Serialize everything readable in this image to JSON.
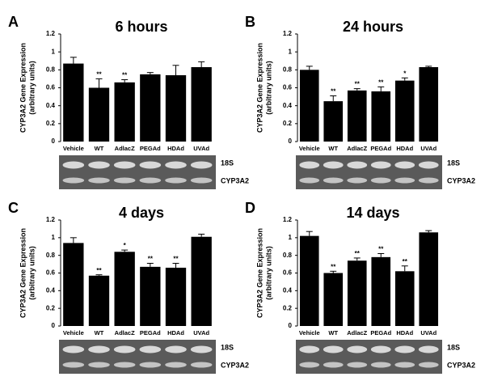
{
  "chart_data": [
    {
      "type": "bar",
      "panel": "A",
      "title": "6 hours",
      "ylabel": [
        "CYP3A2 Gene Expression",
        "(arbitrary units)"
      ],
      "categories": [
        "Vehicle",
        "WT",
        "AdlacZ",
        "PEGAd",
        "HDAd",
        "UVAd"
      ],
      "values": [
        0.87,
        0.6,
        0.66,
        0.75,
        0.74,
        0.83
      ],
      "errors": [
        0.07,
        0.1,
        0.03,
        0.02,
        0.11,
        0.06
      ],
      "significance": [
        null,
        "**",
        "**",
        null,
        null,
        null
      ],
      "color": "#000000",
      "ylim": [
        0,
        1.2
      ],
      "yticks": [
        0,
        0.2,
        0.4,
        0.6,
        0.8,
        1,
        1.2
      ],
      "gel_labels": [
        "18S",
        "CYP3A2"
      ]
    },
    {
      "type": "bar",
      "panel": "B",
      "title": "24 hours",
      "ylabel": [
        "CYP3A2 Gene Expression",
        "(arbitrary units)"
      ],
      "categories": [
        "Vehicle",
        "WT",
        "AdlacZ",
        "PEGAd",
        "HDAd",
        "UVAd"
      ],
      "values": [
        0.8,
        0.45,
        0.57,
        0.56,
        0.68,
        0.83
      ],
      "errors": [
        0.04,
        0.06,
        0.02,
        0.05,
        0.03,
        0.01
      ],
      "significance": [
        null,
        "**",
        "**",
        "**",
        "*",
        null
      ],
      "color": "#000000",
      "ylim": [
        0,
        1.2
      ],
      "yticks": [
        0,
        0.2,
        0.4,
        0.6,
        0.8,
        1,
        1.2
      ],
      "gel_labels": [
        "18S",
        "CYP3A2"
      ]
    },
    {
      "type": "bar",
      "panel": "C",
      "title": "4 days",
      "ylabel": [
        "CYP3A2 Gene Expression",
        "(arbitrary units)"
      ],
      "categories": [
        "Vehicle",
        "WT",
        "AdlacZ",
        "PEGAd",
        "HDAd",
        "UVAd"
      ],
      "values": [
        0.94,
        0.57,
        0.84,
        0.67,
        0.66,
        1.01
      ],
      "errors": [
        0.06,
        0.01,
        0.02,
        0.04,
        0.05,
        0.03
      ],
      "significance": [
        null,
        "**",
        "*",
        "**",
        "**",
        null
      ],
      "color": "#000000",
      "ylim": [
        0,
        1.2
      ],
      "yticks": [
        0,
        0.2,
        0.4,
        0.6,
        0.8,
        1,
        1.2
      ],
      "gel_labels": [
        "18S",
        "CYP3A2"
      ]
    },
    {
      "type": "bar",
      "panel": "D",
      "title": "14 days",
      "ylabel": [
        "CYP3A2 Gene Expression",
        "(arbitrary units)"
      ],
      "categories": [
        "Vehicle",
        "WT",
        "AdlacZ",
        "PEGAd",
        "HDAd",
        "UVAd"
      ],
      "values": [
        1.02,
        0.6,
        0.74,
        0.78,
        0.62,
        1.06
      ],
      "errors": [
        0.05,
        0.02,
        0.03,
        0.04,
        0.06,
        0.02
      ],
      "significance": [
        null,
        "**",
        "**",
        "**",
        "**",
        null
      ],
      "color": "#000000",
      "ylim": [
        0,
        1.2
      ],
      "yticks": [
        0,
        0.2,
        0.4,
        0.6,
        0.8,
        1,
        1.2
      ],
      "gel_labels": [
        "18S",
        "CYP3A2"
      ]
    }
  ]
}
